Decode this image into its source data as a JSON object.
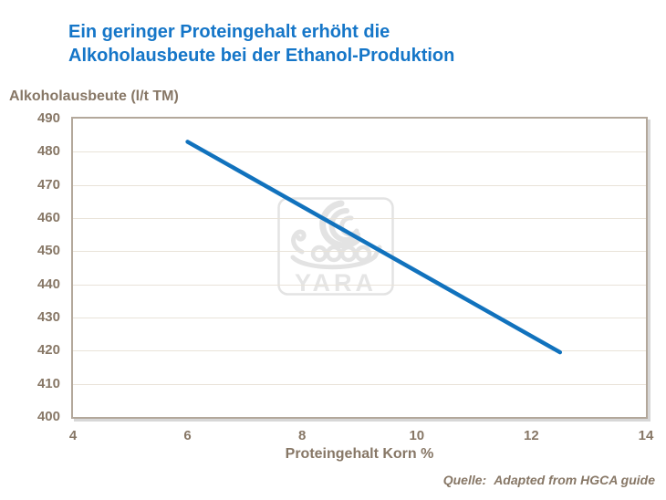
{
  "title": {
    "text": "Ein geringer Proteingehalt erhöht die\nAlkoholausbeute bei der Ethanol-Produktion",
    "color": "#1576c8"
  },
  "watermark": {
    "name": "yara-viking-ship-logo",
    "text": "YARA",
    "color": "#e3e3e3"
  },
  "source": {
    "label": "Quelle:",
    "text": "Adapted from HGCA guide"
  },
  "chart_data": {
    "type": "line",
    "title": "Ein geringer Proteingehalt erhöht die Alkoholausbeute bei der Ethanol-Produktion",
    "xlabel": "Proteingehalt Korn %",
    "ylabel": "Alkoholausbeute (l/t TM)",
    "xlim": [
      4,
      14
    ],
    "ylim": [
      400,
      490
    ],
    "xticks": [
      4,
      6,
      8,
      10,
      12,
      14
    ],
    "yticks": [
      400,
      410,
      420,
      430,
      440,
      450,
      460,
      470,
      480,
      490
    ],
    "grid": "horizontal",
    "legend": "none",
    "line_color": "#1172bd",
    "axis_text_color": "#877766",
    "series": [
      {
        "name": "Alkoholausbeute",
        "points": [
          {
            "x": 6.0,
            "y": 483
          },
          {
            "x": 12.5,
            "y": 419.5
          }
        ]
      }
    ]
  }
}
